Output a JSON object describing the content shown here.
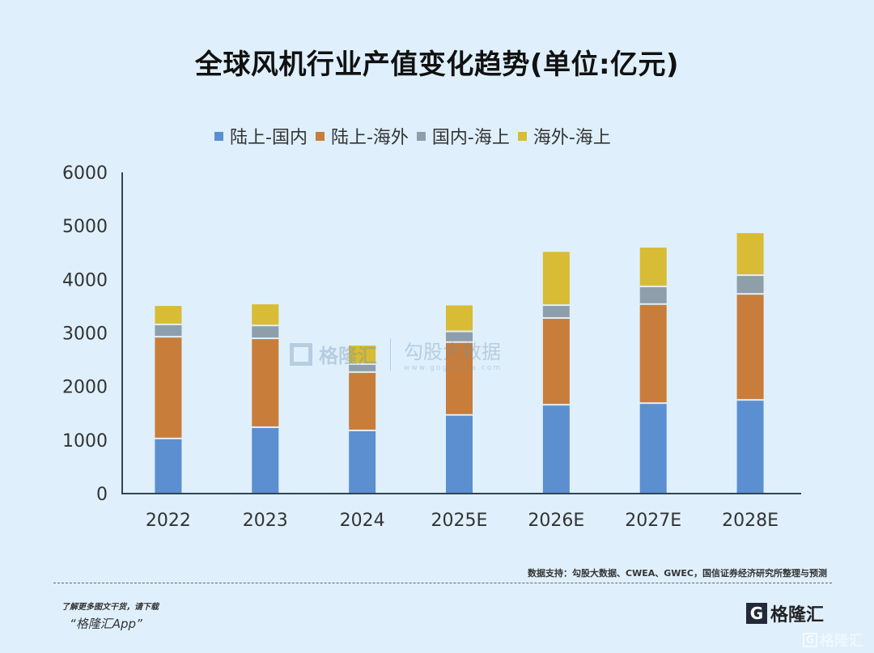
{
  "chart_data": {
    "type": "bar",
    "stacked": true,
    "title": "全球风机行业产值变化趋势(单位:亿元)",
    "xlabel": "",
    "ylabel": "",
    "ylim": [
      0,
      6000
    ],
    "yticks": [
      "0",
      "1000",
      "2000",
      "3000",
      "4000",
      "5000",
      "6000"
    ],
    "ytick_values": [
      0,
      1000,
      2000,
      3000,
      4000,
      5000,
      6000
    ],
    "grid": false,
    "legend_position": "top",
    "categories": [
      "2022",
      "2023",
      "2024",
      "2025E",
      "2026E",
      "2027E",
      "2028E"
    ],
    "series": [
      {
        "name": "陆上-国内",
        "color": "#5b8fd0",
        "values": [
          1030,
          1240,
          1180,
          1470,
          1660,
          1690,
          1750
        ]
      },
      {
        "name": "陆上-海外",
        "color": "#c87d3a",
        "values": [
          1900,
          1660,
          1090,
          1360,
          1620,
          1850,
          1980
        ]
      },
      {
        "name": "国内-海上",
        "color": "#8f9eab",
        "values": [
          230,
          240,
          150,
          200,
          240,
          330,
          350
        ]
      },
      {
        "name": "海外-海上",
        "color": "#d8bc35",
        "values": [
          360,
          410,
          360,
          500,
          1010,
          740,
          800
        ]
      }
    ]
  },
  "footer": {
    "source": "数据支持：勾股大数据、CWEA、GWEC，国信证券经济研究所整理与预测",
    "promo_line1": "了解更多图文干货，请下载",
    "promo_line2": "“格隆汇App”",
    "logo_text": "格隆汇",
    "logo_mark": "G",
    "corner_logo_text": "格隆汇"
  },
  "watermark": {
    "left_text": "格隆汇",
    "right_text": "勾股大数据",
    "right_url": "www.gogudata.com"
  },
  "colors": {
    "background": "#dff0fc",
    "axis": "#334455"
  }
}
